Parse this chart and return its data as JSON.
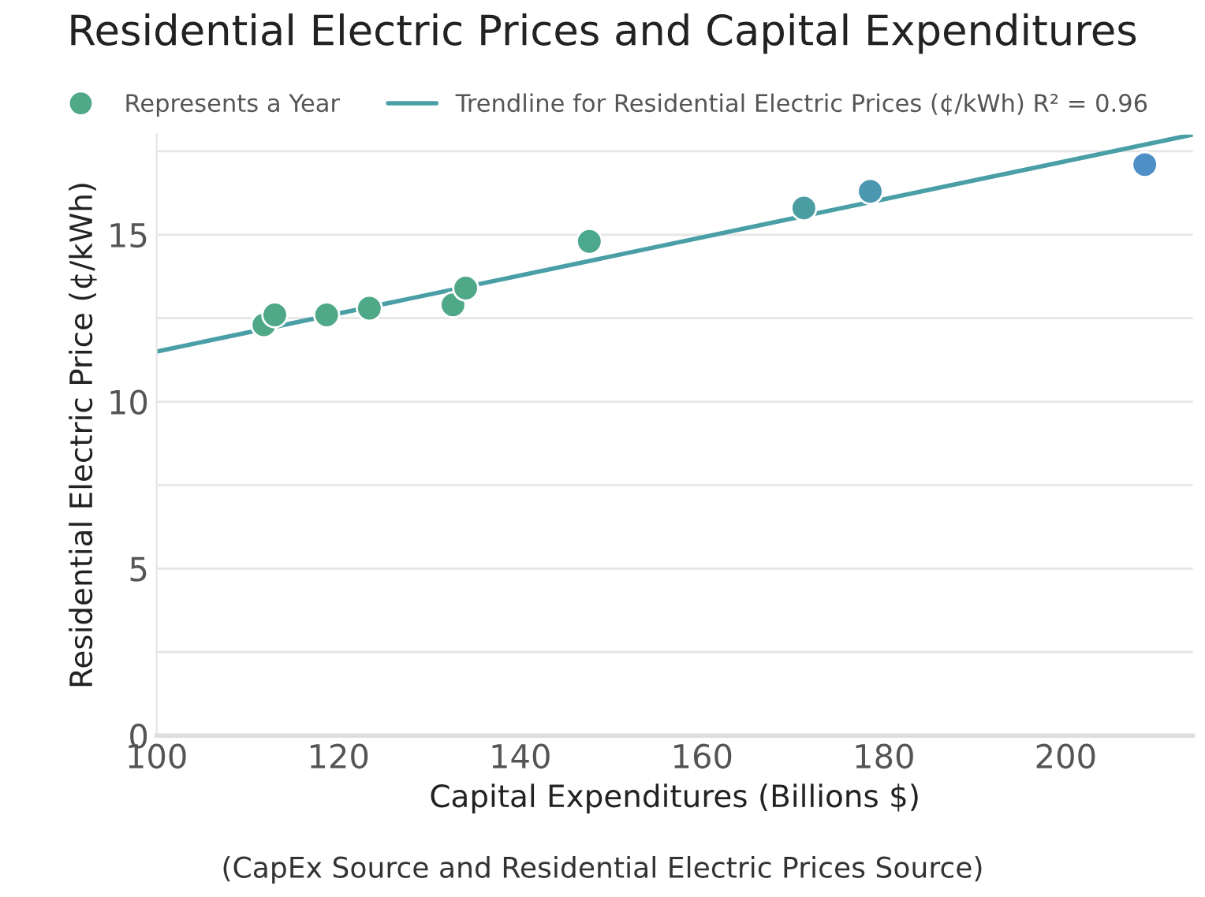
{
  "chart_data": {
    "type": "scatter",
    "title": "Residential Electric Prices and Capital Expenditures",
    "xlabel": "Capital Expenditures (Billions $)",
    "ylabel": "Residential Electric Price (¢/kWh)",
    "annotations": [
      "(CapEx Source and Residential Electric Prices Source)"
    ],
    "series": [
      {
        "name": "Represents a Year",
        "marker": "circle",
        "x": [
          111.8,
          113.0,
          118.7,
          123.4,
          132.6,
          134.0,
          147.6,
          171.2,
          178.5,
          208.7
        ],
        "values": [
          12.3,
          12.6,
          12.6,
          12.8,
          12.9,
          13.4,
          14.8,
          15.8,
          16.3,
          17.1
        ],
        "colors": [
          "#4fa887",
          "#4fa887",
          "#4fa887",
          "#4fa887",
          "#4fa887",
          "#4fa887",
          "#4ca88c",
          "#4a9ea2",
          "#4c98b0",
          "#4f8fc8"
        ]
      },
      {
        "name": "Trendline for Residential Electric Prices (¢/kWh) R² = 0.96",
        "type": "line",
        "color": "#4a9fa6",
        "x": [
          100,
          214
        ],
        "values": [
          11.5,
          18.0
        ]
      }
    ],
    "xlim": [
      100,
      214
    ],
    "ylim": [
      0,
      18
    ],
    "xticks": [
      100,
      120,
      140,
      160,
      180,
      200
    ],
    "yticks": [
      0,
      {
        "value": 2.5,
        "label": null
      },
      5,
      {
        "value": 7.5,
        "label": null
      },
      10,
      {
        "value": 12.5,
        "label": null
      },
      15,
      {
        "value": 17.5,
        "label": null
      }
    ],
    "grid": "y",
    "legend": "top"
  }
}
